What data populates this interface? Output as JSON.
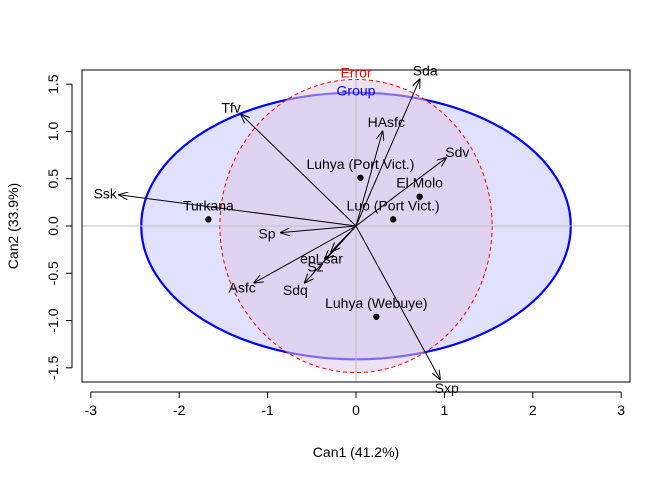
{
  "chart_data": {
    "type": "scatter",
    "title": "",
    "xlabel": "Can1 (41.2%)",
    "ylabel": "Can2 (33.9%)",
    "xlim": [
      -3.1,
      3.1
    ],
    "ylim": [
      -1.65,
      1.65
    ],
    "x_ticks": [
      -3,
      -2,
      -1,
      0,
      1,
      2,
      3
    ],
    "y_ticks": [
      -1.5,
      -1.0,
      -0.5,
      0.0,
      0.5,
      1.0,
      1.5
    ],
    "x_tick_labels": [
      "-3",
      "-2",
      "-1",
      "0",
      "1",
      "2",
      "3"
    ],
    "y_tick_labels": [
      "-1.5",
      "-1.0",
      "-0.5",
      "0.0",
      "0.5",
      "1.0",
      "1.5"
    ],
    "reference_lines": {
      "x": 0,
      "y": 0,
      "color": "#bebebe"
    },
    "ellipses": [
      {
        "name": "Group",
        "center": [
          0,
          0
        ],
        "radius_x": 2.43,
        "radius_y": 1.41,
        "stroke": "#0000ff",
        "fill": "#e0e0ff",
        "dashed": false
      },
      {
        "name": "Error",
        "center": [
          0,
          0
        ],
        "radius_x": 1.54,
        "radius_y": 1.55,
        "stroke": "#ff0000",
        "fill": "#e0c8e8",
        "dashed": true,
        "fill_opacity": 0.55
      }
    ],
    "groups": [
      {
        "label": "Turkana",
        "x": -1.67,
        "y": 0.07
      },
      {
        "label": "Luhya (Port Vict.)",
        "x": 0.05,
        "y": 0.51
      },
      {
        "label": "El Molo",
        "x": 0.72,
        "y": 0.31
      },
      {
        "label": "Luo (Port Vict.)",
        "x": 0.42,
        "y": 0.07
      },
      {
        "label": "Luhya (Webuye)",
        "x": 0.23,
        "y": -0.96
      }
    ],
    "vectors": [
      {
        "label": "Sda",
        "x": 0.72,
        "y": 1.55
      },
      {
        "label": "HAsfc",
        "x": 0.3,
        "y": 1.0
      },
      {
        "label": "Sdv",
        "x": 1.02,
        "y": 0.72
      },
      {
        "label": "Tfv",
        "x": -1.3,
        "y": 1.18
      },
      {
        "label": "Ssk",
        "x": -2.68,
        "y": 0.33
      },
      {
        "label": "Sp",
        "x": -0.85,
        "y": -0.07
      },
      {
        "label": "epLsar",
        "x": -0.28,
        "y": -0.27
      },
      {
        "label": "Sz",
        "x": -0.35,
        "y": -0.35
      },
      {
        "label": "Asfc",
        "x": -1.15,
        "y": -0.6
      },
      {
        "label": "Sdq",
        "x": -0.58,
        "y": -0.6
      },
      {
        "label": "Sxp",
        "x": 0.95,
        "y": -1.62
      }
    ],
    "colors": {
      "axis": "#000000",
      "group_label": "#0000ff",
      "error_label": "#ff0000",
      "points": "#000000"
    },
    "annotations": [
      {
        "text": "Error",
        "color": "#ff0000"
      },
      {
        "text": "Group",
        "color": "#0000ff"
      }
    ]
  }
}
